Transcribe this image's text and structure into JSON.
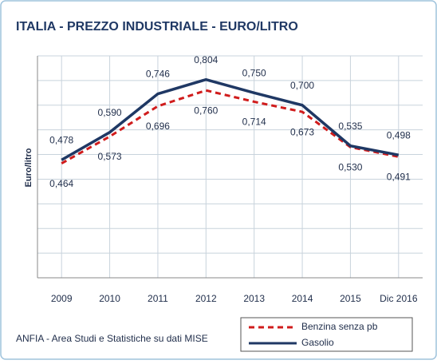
{
  "chart_data": {
    "type": "line",
    "title": "ITALIA - PREZZO INDUSTRIALE - EURO/LITRO",
    "y_label": "Euro/litro",
    "source": "ANFIA - Area Studi e Statistiche su dati MISE",
    "categories": [
      "2009",
      "2010",
      "2011",
      "2012",
      "2013",
      "2014",
      "2015",
      "Dic 2016"
    ],
    "series": [
      {
        "name": "Benzina senza pb",
        "color": "#d01c1c",
        "dashed": true,
        "values": [
          0.464,
          0.573,
          0.696,
          0.76,
          0.714,
          0.673,
          0.53,
          0.491
        ],
        "value_labels": [
          "0,464",
          "0,573",
          "0,696",
          "0,760",
          "0,714",
          "0,673",
          "0,530",
          "0,491"
        ]
      },
      {
        "name": "Gasolio",
        "color": "#1f3864",
        "dashed": false,
        "values": [
          0.478,
          0.59,
          0.746,
          0.804,
          0.75,
          0.7,
          0.535,
          0.498
        ],
        "value_labels": [
          "0,478",
          "0,590",
          "0,746",
          "0,804",
          "0,750",
          "0,700",
          "0,535",
          "0,498"
        ]
      }
    ],
    "ylim": [
      0,
      0.9
    ],
    "yticks": [
      0,
      0.1,
      0.2,
      0.3,
      0.4,
      0.5,
      0.6,
      0.7,
      0.8,
      0.9
    ],
    "grid": true
  }
}
